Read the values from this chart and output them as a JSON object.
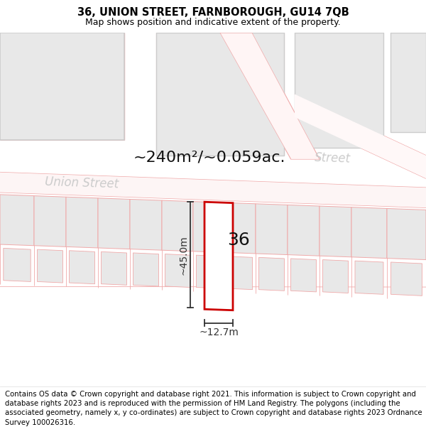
{
  "title": "36, UNION STREET, FARNBOROUGH, GU14 7QB",
  "subtitle": "Map shows position and indicative extent of the property.",
  "footer": "Contains OS data © Crown copyright and database right 2021. This information is subject to Crown copyright and database rights 2023 and is reproduced with the permission of HM Land Registry. The polygons (including the associated geometry, namely x, y co-ordinates) are subject to Crown copyright and database rights 2023 Ordnance Survey 100026316.",
  "area_text": "~240m²/~0.059ac.",
  "dim_width": "~12.7m",
  "dim_height": "~45.0m",
  "label_36": "36",
  "bg_color": "#ffffff",
  "map_bg": "#ffffff",
  "building_fill": "#e8e8e8",
  "building_edge": "#f0aaaa",
  "highlight_color": "#cc0000",
  "street_label_color": "#cccccc",
  "dim_color": "#333333",
  "title_fontsize": 10.5,
  "subtitle_fontsize": 9.0,
  "footer_fontsize": 7.3,
  "area_fontsize": 16,
  "street_fontsize": 12,
  "label_fontsize": 18,
  "dim_fontsize": 10
}
